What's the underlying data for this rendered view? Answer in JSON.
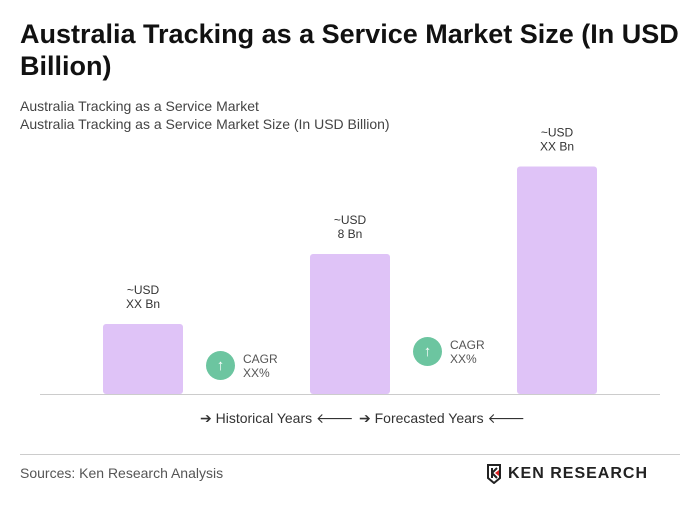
{
  "title": "Australia Tracking as a Service Market Size (In USD Billion)",
  "subtitle1": "Australia Tracking as a Service Market",
  "subtitle2": "Australia Tracking as a Service Market Size (In USD Billion)",
  "chart_data": {
    "type": "bar",
    "categories": [
      "",
      "",
      ""
    ],
    "values": [
      4,
      8,
      13
    ],
    "data_labels": [
      [
        "~USD",
        "XX Bn"
      ],
      [
        "~USD",
        "8 Bn"
      ],
      [
        "~USD",
        "XX Bn"
      ]
    ],
    "bar_color": "#dfc3f7",
    "grid": false
  },
  "cagr": [
    {
      "label": "CAGR",
      "value": "XX%"
    },
    {
      "label": "CAGR",
      "value": "XX%"
    }
  ],
  "legend": {
    "historical": "Historical Years",
    "forecasted": "Forecasted Years"
  },
  "sources": "Sources: Ken Research Analysis",
  "logo": "KEN RESEARCH"
}
